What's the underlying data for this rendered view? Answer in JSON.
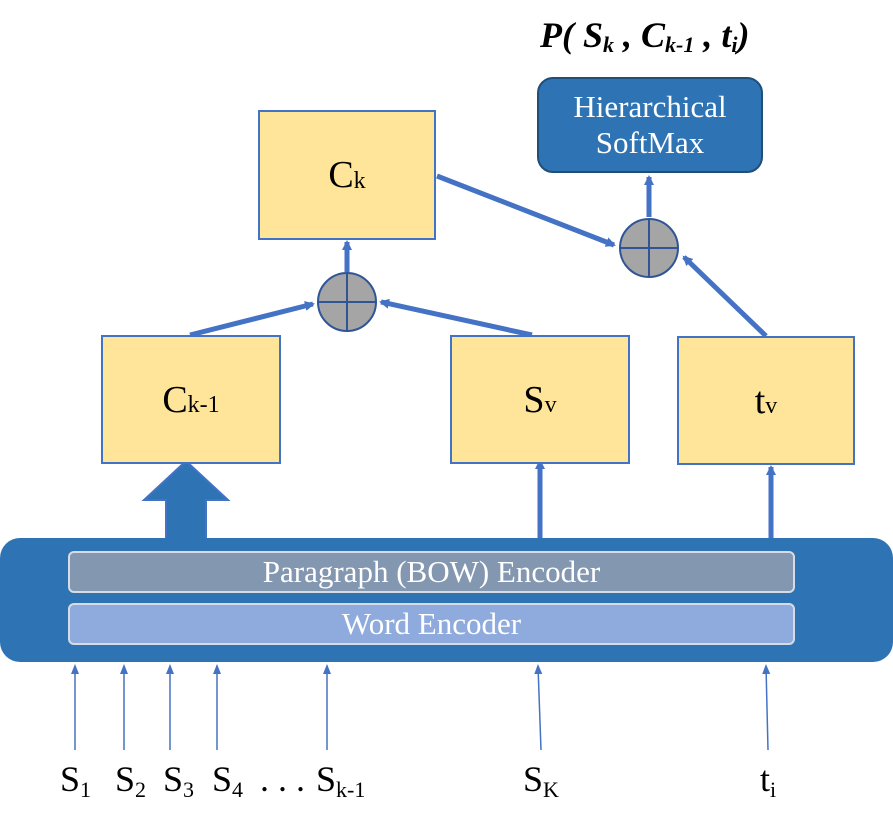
{
  "output": {
    "prefix": "P( ",
    "s": "S",
    "s_sub": "k",
    "sep1": " , ",
    "c": "C",
    "c_sub": "k-1",
    "sep2": " , ",
    "t": "t",
    "t_sub": "i",
    "suffix": ")"
  },
  "softmax": {
    "line1": "Hierarchical",
    "line2": "SoftMax"
  },
  "nodes": {
    "ck": {
      "base": "C",
      "sub": "k"
    },
    "ck1": {
      "base": "C",
      "sub": "k-1"
    },
    "sv": {
      "base": "S",
      "sub": "v"
    },
    "tv": {
      "base": "t",
      "sub": "v"
    }
  },
  "encoders": {
    "paragraph": "Paragraph (BOW) Encoder",
    "word": "Word Encoder"
  },
  "inputs": [
    {
      "base": "S",
      "sub": "1"
    },
    {
      "base": "S",
      "sub": "2"
    },
    {
      "base": "S",
      "sub": "3"
    },
    {
      "base": "S",
      "sub": "4"
    },
    {
      "base": ". . .",
      "sub": ""
    },
    {
      "base": "S",
      "sub": "k-1"
    },
    {
      "base": "S",
      "sub": "K"
    },
    {
      "base": "t",
      "sub": "i"
    }
  ],
  "colors": {
    "arrow": "#4472c4",
    "node_fill": "#ffe599",
    "encoder": "#2e74b5",
    "sum_node": "#a5a5a5"
  }
}
